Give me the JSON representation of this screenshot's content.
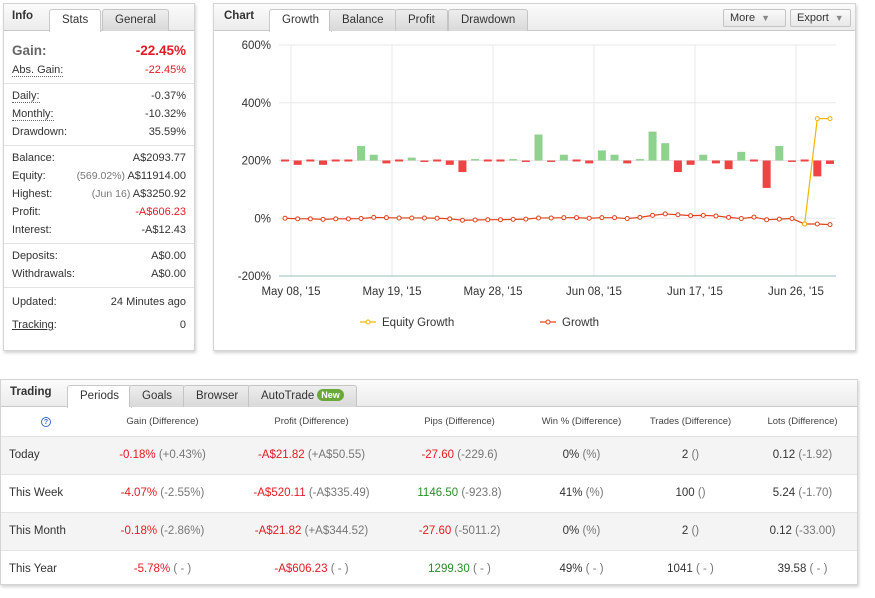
{
  "info": {
    "title": "Info",
    "tabs": [
      "Stats",
      "General"
    ],
    "gain_label": "Gain:",
    "gain_value": "-22.45%",
    "abs_gain_label": "Abs. Gain:",
    "abs_gain_value": "-22.45%",
    "daily_label": "Daily:",
    "daily_value": "-0.37%",
    "monthly_label": "Monthly:",
    "monthly_value": "-10.32%",
    "drawdown_label": "Drawdown:",
    "drawdown_value": "35.59%",
    "balance_label": "Balance:",
    "balance_value": "A$2093.77",
    "equity_label": "Equity:",
    "equity_pct": "(569.02%)",
    "equity_value": "A$11914.00",
    "highest_label": "Highest:",
    "highest_date": "(Jun 16)",
    "highest_value": "A$3250.92",
    "profit_label": "Profit:",
    "profit_value": "-A$606.23",
    "interest_label": "Interest:",
    "interest_value": "-A$12.43",
    "deposits_label": "Deposits:",
    "deposits_value": "A$0.00",
    "withdrawals_label": "Withdrawals:",
    "withdrawals_value": "A$0.00",
    "updated_label": "Updated:",
    "updated_value": "24 Minutes ago",
    "tracking_label": "Tracking",
    "tracking_value": "0"
  },
  "chart_panel": {
    "title": "Chart",
    "tabs": [
      "Growth",
      "Balance",
      "Profit",
      "Drawdown"
    ],
    "more_label": "More",
    "export_label": "Export",
    "colors": {
      "positive_bar": "#8fd18f",
      "negative_bar": "#ee4444",
      "equity_line": "#f4b400",
      "growth_line": "#e0431b",
      "grid": "#e8e8e8"
    }
  },
  "chart_data": {
    "type": "bar",
    "ylim": [
      -200,
      600
    ],
    "yticks": [
      "600%",
      "400%",
      "200%",
      "0%",
      "-200%"
    ],
    "xticks": [
      "May 08, '15",
      "May 19, '15",
      "May 28, '15",
      "Jun 08, '15",
      "Jun 17, '15",
      "Jun 26, '15"
    ],
    "bars": [
      0,
      -15,
      0,
      -15,
      0,
      0,
      50,
      20,
      -10,
      0,
      10,
      -5,
      0,
      -15,
      -40,
      5,
      0,
      0,
      5,
      -5,
      90,
      -5,
      20,
      0,
      -10,
      35,
      20,
      -10,
      5,
      100,
      60,
      -40,
      -15,
      20,
      -10,
      -30,
      30,
      0,
      -95,
      50,
      -5,
      0,
      -55,
      -12
    ],
    "series": [
      {
        "name": "Equity Growth",
        "values": [
          null,
          null,
          null,
          null,
          null,
          null,
          null,
          null,
          null,
          null,
          null,
          null,
          null,
          null,
          null,
          null,
          null,
          null,
          null,
          null,
          null,
          null,
          null,
          null,
          null,
          null,
          null,
          null,
          null,
          null,
          null,
          null,
          null,
          null,
          null,
          null,
          null,
          null,
          null,
          null,
          null,
          -20,
          345,
          345
        ]
      },
      {
        "name": "Growth",
        "values": [
          0,
          -2,
          -2,
          -4,
          -2,
          -2,
          -1,
          3,
          2,
          1,
          1,
          1,
          0,
          -2,
          -7,
          -6,
          -5,
          -5,
          -4,
          -3,
          1,
          1,
          2,
          2,
          0,
          2,
          2,
          -1,
          3,
          10,
          15,
          12,
          9,
          10,
          8,
          3,
          -1,
          4,
          -5,
          -3,
          -1,
          -20,
          -20,
          -22
        ]
      }
    ]
  },
  "trading": {
    "title": "Trading",
    "tabs": [
      "Periods",
      "Goals",
      "Browser",
      "AutoTrade"
    ],
    "new_badge": "New",
    "help_icon": "?",
    "headers": [
      "Gain (Difference)",
      "Profit (Difference)",
      "Pips (Difference)",
      "Win % (Difference)",
      "Trades (Difference)",
      "Lots (Difference)"
    ],
    "rows": [
      {
        "label": "Today",
        "gain": "-0.18%",
        "gain_diff": "(+0.43%)",
        "profit": "-A$21.82",
        "profit_diff": "(+A$50.55)",
        "pips": "-27.60",
        "pips_diff": "(-229.6)",
        "win": "0%",
        "win_diff": "(%)",
        "trades": "2",
        "trades_diff": "()",
        "lots": "0.12",
        "lots_diff": "(-1.92)"
      },
      {
        "label": "This Week",
        "gain": "-4.07%",
        "gain_diff": "(-2.55%)",
        "profit": "-A$520.11",
        "profit_diff": "(-A$335.49)",
        "pips": "1146.50",
        "pips_diff": "(-923.8)",
        "win": "41%",
        "win_diff": "(%)",
        "trades": "100",
        "trades_diff": "()",
        "lots": "5.24",
        "lots_diff": "(-1.70)"
      },
      {
        "label": "This Month",
        "gain": "-0.18%",
        "gain_diff": "(-2.86%)",
        "profit": "-A$21.82",
        "profit_diff": "(+A$344.52)",
        "pips": "-27.60",
        "pips_diff": "(-5011.2)",
        "win": "0%",
        "win_diff": "(%)",
        "trades": "2",
        "trades_diff": "()",
        "lots": "0.12",
        "lots_diff": "(-33.00)"
      },
      {
        "label": "This Year",
        "gain": "-5.78%",
        "gain_diff": "( - )",
        "profit": "-A$606.23",
        "profit_diff": "( - )",
        "pips": "1299.30",
        "pips_diff": "( - )",
        "win": "49%",
        "win_diff": "( - )",
        "trades": "1041",
        "trades_diff": "( - )",
        "lots": "39.58",
        "lots_diff": "( - )"
      }
    ]
  }
}
